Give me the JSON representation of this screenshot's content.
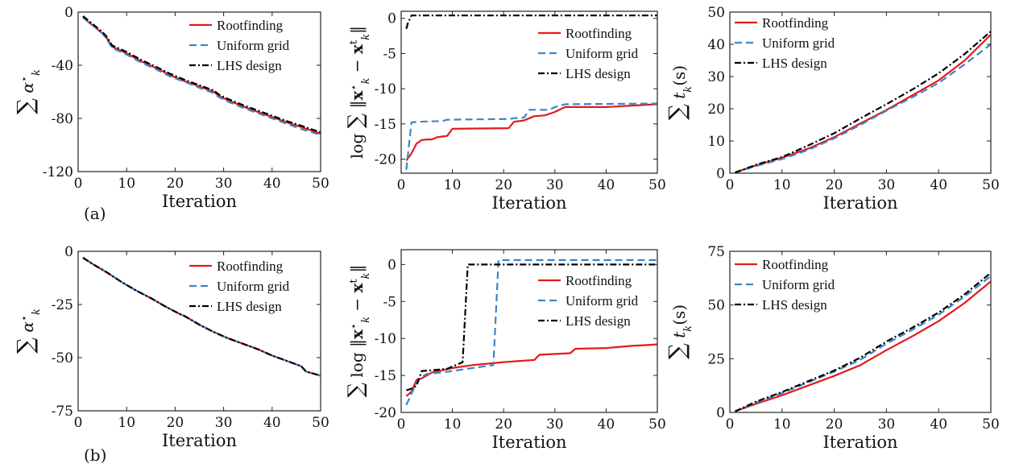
{
  "panel_labels": [
    "(a)",
    "(b)"
  ],
  "legend_entries": [
    "Rootfinding",
    "Uniform grid",
    "LHS design"
  ],
  "colors": {
    "rootfinding": "#e31a1c",
    "uniform": "#3a86c8",
    "lhs": "#000000"
  },
  "chart_data": [
    {
      "type": "line",
      "row": "a",
      "xlabel": "Iteration",
      "ylabel": "∑ α⋆k",
      "ylim": [
        -120,
        0
      ],
      "xlim": [
        0,
        50
      ],
      "yticks": [
        0,
        -40,
        -80,
        -120
      ],
      "xticks": [
        0,
        10,
        20,
        30,
        40,
        50
      ],
      "legend": "top-right",
      "grid": false,
      "x": [
        1,
        2,
        3,
        4,
        5,
        6,
        7,
        10,
        13,
        16,
        19,
        22,
        25,
        28,
        29,
        31,
        34,
        37,
        40,
        43,
        46,
        50
      ],
      "series": [
        {
          "name": "Rootfinding",
          "values": [
            -4,
            -7,
            -10,
            -13,
            -16,
            -20,
            -26,
            -31,
            -37,
            -42,
            -47.5,
            -52,
            -56,
            -60,
            -63,
            -66.5,
            -71,
            -75,
            -79,
            -83,
            -86.5,
            -91.5
          ]
        },
        {
          "name": "Uniform grid",
          "values": [
            -4,
            -7,
            -10,
            -13,
            -16,
            -21,
            -27,
            -32,
            -38,
            -43,
            -48.5,
            -52.5,
            -57,
            -61,
            -64,
            -67.5,
            -72,
            -76,
            -80,
            -84,
            -88,
            -92.5
          ]
        },
        {
          "name": "LHS design",
          "values": [
            -3,
            -6,
            -9,
            -12,
            -15,
            -19,
            -25,
            -30,
            -36,
            -41,
            -46.5,
            -51,
            -55,
            -59,
            -62,
            -65.5,
            -70,
            -74,
            -78,
            -82,
            -85.5,
            -90.5
          ]
        }
      ]
    },
    {
      "type": "line",
      "row": "a",
      "xlabel": "Iteration",
      "ylabel": "log ∑ ‖x⋆k − xtk‖",
      "ylim": [
        -22,
        1
      ],
      "xlim": [
        0,
        50
      ],
      "yticks": [
        0,
        -5,
        -10,
        -15,
        -20
      ],
      "yticklabels": [
        "0",
        "-5",
        "-10",
        "-15",
        "-20"
      ],
      "xticks": [
        0,
        10,
        20,
        30,
        40,
        50
      ],
      "legend": "top-right",
      "grid": false,
      "series": [
        {
          "name": "Rootfinding",
          "x": [
            1,
            2,
            3,
            4,
            5,
            6,
            7,
            9,
            10,
            21,
            22,
            24,
            25,
            26,
            28,
            30,
            32,
            40,
            50
          ],
          "values": [
            -20.2,
            -19.2,
            -17.8,
            -17.3,
            -17.2,
            -17.2,
            -16.9,
            -16.7,
            -15.7,
            -15.6,
            -14.7,
            -14.5,
            -14.2,
            -13.9,
            -13.8,
            -13.3,
            -12.6,
            -12.6,
            -12.2
          ]
        },
        {
          "name": "Uniform grid",
          "x": [
            1,
            2,
            3,
            8,
            9,
            21,
            22,
            24,
            25,
            29,
            30,
            32,
            50
          ],
          "values": [
            -21.5,
            -14.8,
            -14.7,
            -14.6,
            -14.4,
            -14.3,
            -14.2,
            -14.1,
            -13.0,
            -13.0,
            -12.6,
            -12.2,
            -12.1
          ]
        },
        {
          "name": "LHS design",
          "x": [
            1,
            1.3,
            2,
            50
          ],
          "values": [
            -1.5,
            -0.7,
            0.4,
            0.4
          ]
        }
      ]
    },
    {
      "type": "line",
      "row": "a",
      "xlabel": "Iteration",
      "ylabel": "∑ tk(s)",
      "ylim": [
        0,
        50
      ],
      "xlim": [
        0,
        50
      ],
      "yticks": [
        0,
        10,
        20,
        30,
        40,
        50
      ],
      "xticks": [
        0,
        10,
        20,
        30,
        40,
        50
      ],
      "legend": "top-left",
      "grid": false,
      "x": [
        1,
        5,
        10,
        15,
        20,
        25,
        30,
        35,
        40,
        45,
        50
      ],
      "series": [
        {
          "name": "Rootfinding",
          "values": [
            0.2,
            2.4,
            4.8,
            7.6,
            11.2,
            15.4,
            19.6,
            24.2,
            28.8,
            35.0,
            43.0
          ]
        },
        {
          "name": "Uniform grid",
          "values": [
            0.2,
            2.2,
            4.4,
            7.2,
            10.8,
            15.0,
            19.4,
            23.6,
            28.0,
            33.8,
            40.0
          ]
        },
        {
          "name": "LHS design",
          "values": [
            0.2,
            2.6,
            5.0,
            8.6,
            12.4,
            17.0,
            21.4,
            26.0,
            31.0,
            37.0,
            44.0
          ]
        }
      ]
    },
    {
      "type": "line",
      "row": "b",
      "xlabel": "Iteration",
      "ylabel": "∑ α⋆k",
      "ylim": [
        -75,
        0
      ],
      "xlim": [
        0,
        50
      ],
      "yticks": [
        0,
        -25,
        -50,
        -75
      ],
      "xticks": [
        0,
        10,
        20,
        30,
        40,
        50
      ],
      "legend": "top-right",
      "grid": false,
      "x": [
        1,
        3,
        6,
        9,
        12,
        15,
        18,
        21,
        22,
        25,
        28,
        31,
        34,
        37,
        40,
        43,
        46,
        47,
        50
      ],
      "series": [
        {
          "name": "Rootfinding",
          "values": [
            -3,
            -6,
            -10,
            -14.5,
            -18.5,
            -22,
            -26,
            -29.5,
            -30.5,
            -34.5,
            -38,
            -41,
            -43.5,
            -46,
            -49,
            -51.5,
            -54,
            -56.5,
            -58.5
          ]
        },
        {
          "name": "Uniform grid",
          "values": [
            -3,
            -6,
            -10,
            -14.5,
            -18.5,
            -22,
            -26,
            -29.5,
            -30.5,
            -34.5,
            -38,
            -41,
            -43.5,
            -46,
            -49,
            -51.5,
            -54,
            -56.5,
            -58.5
          ]
        },
        {
          "name": "LHS design",
          "values": [
            -3,
            -6,
            -10,
            -14.5,
            -18.5,
            -22,
            -26,
            -29.5,
            -30.5,
            -34.5,
            -38,
            -41,
            -43.5,
            -46,
            -49,
            -51.5,
            -54,
            -56.5,
            -58.5
          ]
        }
      ]
    },
    {
      "type": "line",
      "row": "b",
      "xlabel": "Iteration",
      "ylabel": "∑ log ‖x⋆k − xtk‖",
      "ylim": [
        -20,
        2
      ],
      "xlim": [
        0,
        50
      ],
      "yticks": [
        0,
        -5,
        -10,
        -15,
        -20
      ],
      "yticklabels": [
        "0",
        "-5",
        "-10",
        "-15",
        "-20"
      ],
      "xticks": [
        0,
        10,
        20,
        30,
        40,
        50
      ],
      "legend": "top-right",
      "grid": false,
      "series": [
        {
          "name": "Rootfinding",
          "x": [
            1,
            2,
            3,
            4,
            6,
            8,
            10,
            14,
            20,
            26,
            27,
            33,
            34,
            40,
            45,
            48,
            50
          ],
          "values": [
            -17.8,
            -17.2,
            -15.6,
            -15.4,
            -14.6,
            -14.3,
            -14.0,
            -13.6,
            -13.2,
            -12.9,
            -12.2,
            -12.0,
            -11.4,
            -11.3,
            -11.0,
            -10.9,
            -10.8
          ]
        },
        {
          "name": "Uniform grid",
          "x": [
            1,
            2,
            3,
            4,
            5,
            8,
            12,
            18,
            19,
            50
          ],
          "values": [
            -19.0,
            -17.5,
            -16.0,
            -15.2,
            -14.8,
            -14.6,
            -14.2,
            -13.6,
            0.6,
            0.6
          ]
        },
        {
          "name": "LHS design",
          "x": [
            1,
            2,
            3,
            4,
            6,
            9,
            12,
            13,
            50
          ],
          "values": [
            -17.0,
            -16.8,
            -16.4,
            -14.4,
            -14.3,
            -14.1,
            -13.2,
            0.0,
            0.0
          ]
        }
      ]
    },
    {
      "type": "line",
      "row": "b",
      "xlabel": "Iteration",
      "ylabel": "∑ tk(s)",
      "ylim": [
        0,
        75
      ],
      "xlim": [
        0,
        50
      ],
      "yticks": [
        0,
        25,
        50,
        75
      ],
      "xticks": [
        0,
        10,
        20,
        30,
        40,
        50
      ],
      "legend": "top-left",
      "grid": false,
      "x": [
        1,
        5,
        10,
        15,
        20,
        25,
        30,
        35,
        40,
        45,
        50
      ],
      "series": [
        {
          "name": "Rootfinding",
          "values": [
            0.5,
            4.0,
            8.0,
            12.5,
            17.0,
            22.0,
            29.0,
            35.5,
            42.5,
            51.0,
            61.0
          ]
        },
        {
          "name": "Uniform grid",
          "values": [
            0.5,
            4.5,
            9.0,
            14.0,
            19.0,
            24.5,
            32.0,
            38.5,
            45.5,
            54.0,
            63.5
          ]
        },
        {
          "name": "LHS design",
          "values": [
            0.5,
            5.0,
            9.5,
            14.5,
            19.5,
            25.5,
            33.0,
            39.5,
            46.5,
            55.0,
            65.0
          ]
        }
      ]
    }
  ]
}
